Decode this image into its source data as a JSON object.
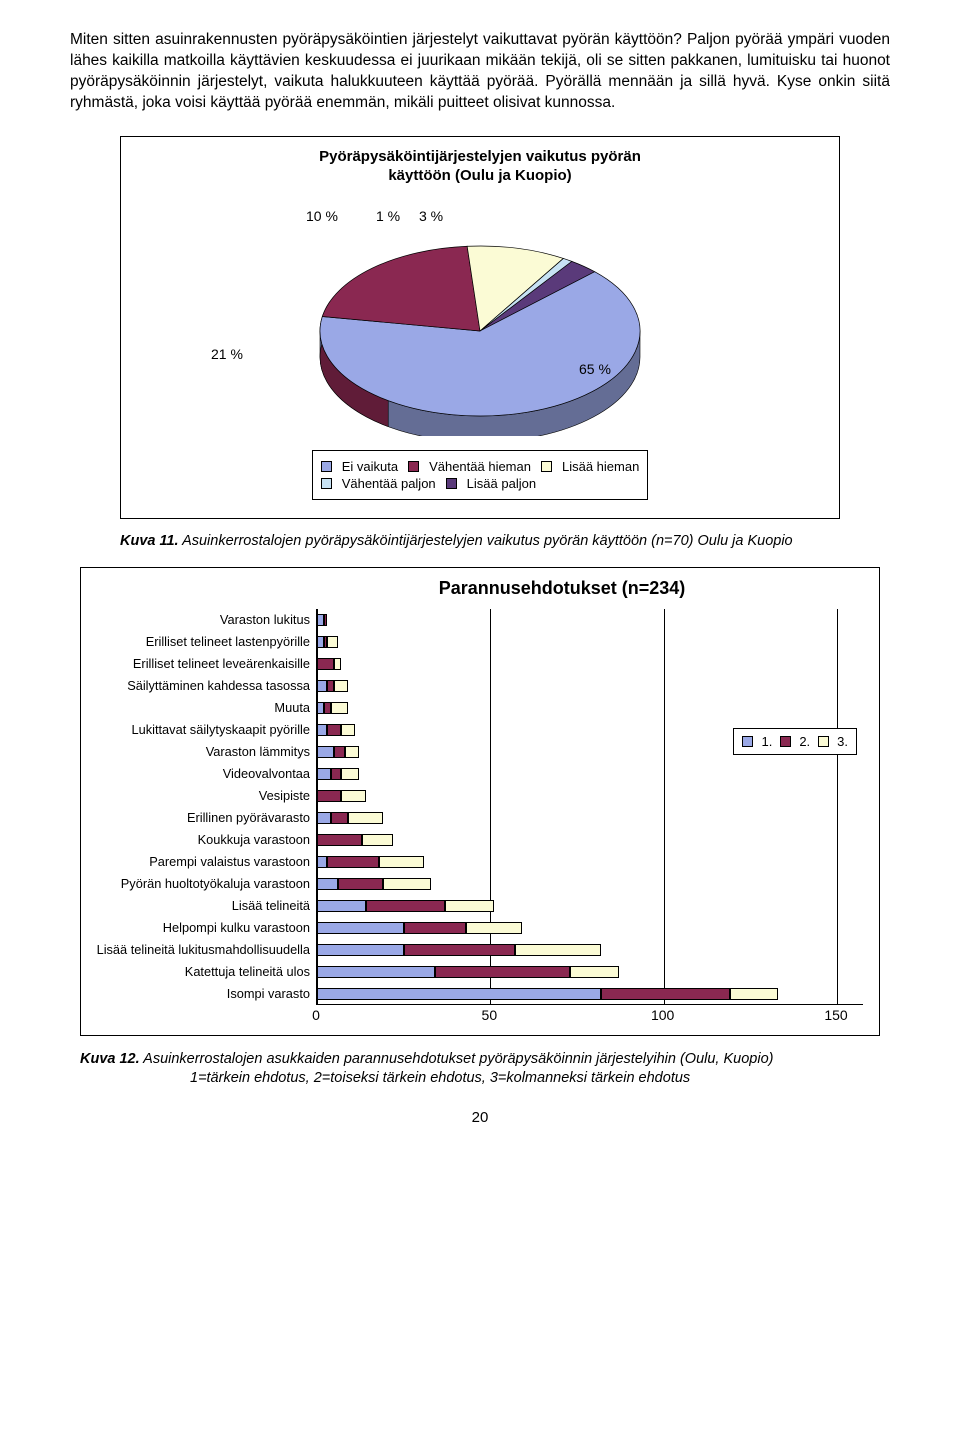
{
  "intro_text": "Miten sitten asuinrakennusten pyöräpysäköintien järjestelyt vaikuttavat pyörän käyttöön? Paljon pyörää ympäri vuoden lähes kaikilla matkoilla käyttävien keskuudessa ei juurikaan mikään tekijä, oli se sitten pakkanen, lumituisku tai huonot pyöräpysäköinnin järjestelyt, vaikuta halukkuuteen käyttää pyörää. Pyörällä mennään ja sillä hyvä. Kyse onkin siitä ryhmästä, joka voisi käyttää pyörää enemmän, mikäli puitteet olisivat kunnossa.",
  "pie": {
    "title_l1": "Pyöräpysäköintijärjestelyjen vaikutus pyörän",
    "title_l2": "käyttöön (Oulu ja Kuopio)",
    "slices": [
      {
        "label": "Ei vaikuta",
        "value": 65,
        "color": "#9aa8e6"
      },
      {
        "label": "Vähentää hieman",
        "value": 21,
        "color": "#8a2851"
      },
      {
        "label": "Lisää hieman",
        "value": 10,
        "color": "#fbfbd5"
      },
      {
        "label": "Vähentää paljon",
        "value": 1,
        "color": "#c7e2f4"
      },
      {
        "label": "Lisää paljon",
        "value": 3,
        "color": "#5a3a7a"
      }
    ],
    "labels_pos": {
      "p10": "10 %",
      "p1": "1 %",
      "p3": "3 %",
      "p21": "21 %",
      "p65": "65 %"
    },
    "legend": {
      "r1": [
        "Ei vaikuta",
        "Vähentää hieman",
        "Lisää hieman"
      ],
      "r2": [
        "Vähentää paljon",
        "Lisää paljon"
      ],
      "colors": [
        "#9aa8e6",
        "#8a2851",
        "#fbfbd5",
        "#c7e2f4",
        "#5a3a7a"
      ]
    }
  },
  "caption1_l1": "Kuva 11.",
  "caption1_l2": " Asuinkerrostalojen pyöräpysäköintijärjestelyjen vaikutus pyörän käyttöön (n=70) Oulu ja Kuopio",
  "bars": {
    "title": "Parannusehdotukset (n=234)",
    "max": 150,
    "ticks": [
      0,
      50,
      100,
      150
    ],
    "legend": {
      "l1": "1.",
      "l2": "2.",
      "l3": "3."
    },
    "colors": {
      "s1": "#9aa8e6",
      "s2": "#8a2851",
      "s3": "#fbfbd5"
    },
    "rows": [
      {
        "label": "Varaston lukitus",
        "v": [
          2,
          1,
          0
        ]
      },
      {
        "label": "Erilliset telineet lastenpyörille",
        "v": [
          2,
          1,
          3
        ]
      },
      {
        "label": "Erilliset telineet leveärenkaisille",
        "v": [
          0,
          5,
          2
        ]
      },
      {
        "label": "Säilyttäminen kahdessa tasossa",
        "v": [
          3,
          2,
          4
        ]
      },
      {
        "label": "Muuta",
        "v": [
          2,
          2,
          5
        ]
      },
      {
        "label": "Lukittavat säilytyskaapit pyörille",
        "v": [
          3,
          4,
          4
        ]
      },
      {
        "label": "Varaston lämmitys",
        "v": [
          5,
          3,
          4
        ]
      },
      {
        "label": "Videovalvontaa",
        "v": [
          4,
          3,
          5
        ]
      },
      {
        "label": "Vesipiste",
        "v": [
          0,
          7,
          7
        ]
      },
      {
        "label": "Erillinen pyörävarasto",
        "v": [
          4,
          5,
          10
        ]
      },
      {
        "label": "Koukkuja varastoon",
        "v": [
          0,
          13,
          9
        ]
      },
      {
        "label": "Parempi valaistus varastoon",
        "v": [
          3,
          15,
          13
        ]
      },
      {
        "label": "Pyörän huoltotyökaluja varastoon",
        "v": [
          6,
          13,
          14
        ]
      },
      {
        "label": "Lisää telineitä",
        "v": [
          14,
          23,
          14
        ]
      },
      {
        "label": "Helpompi kulku varastoon",
        "v": [
          25,
          18,
          16
        ]
      },
      {
        "label": "Lisää telineitä lukitusmahdollisuudella",
        "v": [
          25,
          32,
          25
        ]
      },
      {
        "label": "Katettuja telineitä ulos",
        "v": [
          34,
          39,
          14
        ]
      },
      {
        "label": "Isompi varasto",
        "v": [
          82,
          37,
          14
        ]
      }
    ]
  },
  "caption2_l1": "Kuva 12.",
  "caption2_l2": " Asuinkerrostalojen asukkaiden parannusehdotukset pyöräpysäköinnin järjestelyihin (Oulu, Kuopio)",
  "caption2_l3": "1=tärkein ehdotus, 2=toiseksi tärkein ehdotus, 3=kolmanneksi tärkein ehdotus",
  "page_number": "20"
}
